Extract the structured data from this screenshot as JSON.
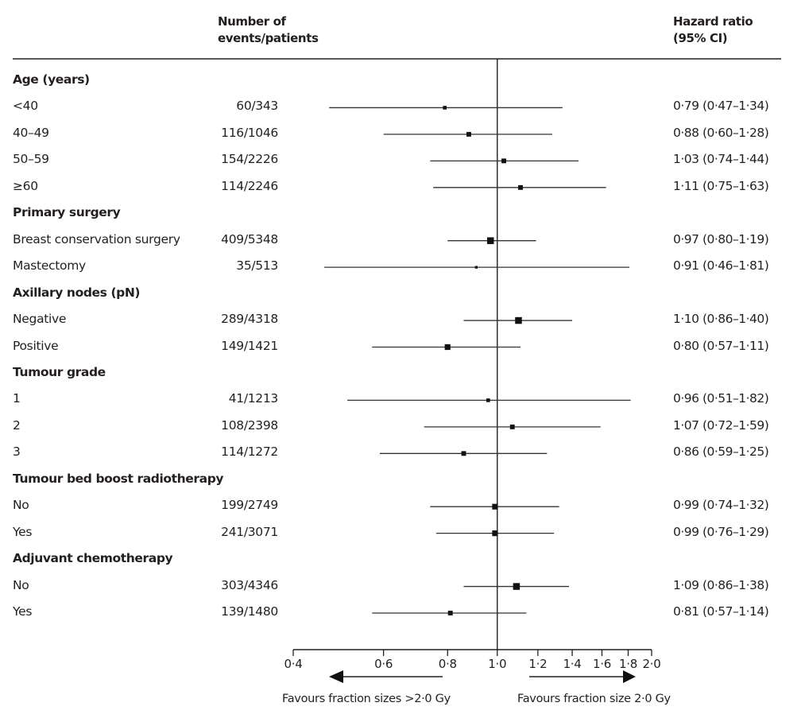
{
  "header": {
    "events_label_line1": "Number of",
    "events_label_line2": "events/patients",
    "hr_label_line1": "Hazard ratio",
    "hr_label_line2": "(95% CI)"
  },
  "chart_data": {
    "type": "forest",
    "x_scale": "log",
    "xlim": [
      0.4,
      2.0
    ],
    "reference_line": 1.0,
    "ticks": [
      {
        "value": 0.4,
        "label": "0·4"
      },
      {
        "value": 0.6,
        "label": "0·6"
      },
      {
        "value": 0.8,
        "label": "0·8"
      },
      {
        "value": 1.0,
        "label": "1·0"
      },
      {
        "value": 1.2,
        "label": "1·2"
      },
      {
        "value": 1.4,
        "label": "1·4"
      },
      {
        "value": 1.6,
        "label": "1·6"
      },
      {
        "value": 1.8,
        "label": "1·8"
      },
      {
        "value": 2.0,
        "label": "2·0"
      }
    ],
    "favours_left": "Favours fraction sizes >2·0 Gy",
    "favours_right": "Favours fraction size 2·0 Gy",
    "rows": [
      {
        "kind": "category",
        "label": "Age (years)"
      },
      {
        "kind": "item",
        "label": "<40",
        "events": "60/343",
        "hr": 0.79,
        "lo": 0.47,
        "hi": 1.34,
        "hr_text": "0·79 (0·47–1·34)",
        "box": 2
      },
      {
        "kind": "item",
        "label": "40–49",
        "events": "116/1046",
        "hr": 0.88,
        "lo": 0.6,
        "hi": 1.28,
        "hr_text": "0·88 (0·60–1·28)",
        "box": 3
      },
      {
        "kind": "item",
        "label": "50–59",
        "events": "154/2226",
        "hr": 1.03,
        "lo": 0.74,
        "hi": 1.44,
        "hr_text": "1·03 (0·74–1·44)",
        "box": 3
      },
      {
        "kind": "item",
        "label": "≥60",
        "events": "114/2246",
        "hr": 1.11,
        "lo": 0.75,
        "hi": 1.63,
        "hr_text": "1·11 (0·75–1·63)",
        "box": 3
      },
      {
        "kind": "category",
        "label": "Primary surgery"
      },
      {
        "kind": "item",
        "label": "Breast conservation surgery",
        "events": "409/5348",
        "hr": 0.97,
        "lo": 0.8,
        "hi": 1.19,
        "hr_text": "0·97 (0·80–1·19)",
        "box": 5
      },
      {
        "kind": "item",
        "label": "Mastectomy",
        "events": "35/513",
        "hr": 0.91,
        "lo": 0.46,
        "hi": 1.81,
        "hr_text": "0·91 (0·46–1·81)",
        "box": 1
      },
      {
        "kind": "category",
        "label": "Axillary nodes (pN)"
      },
      {
        "kind": "item",
        "label": "Negative",
        "events": "289/4318",
        "hr": 1.1,
        "lo": 0.86,
        "hi": 1.4,
        "hr_text": "1·10 (0·86–1·40)",
        "box": 5
      },
      {
        "kind": "item",
        "label": "Positive",
        "events": "149/1421",
        "hr": 0.8,
        "lo": 0.57,
        "hi": 1.11,
        "hr_text": "0·80 (0·57–1·11)",
        "box": 4
      },
      {
        "kind": "category",
        "label": "Tumour grade"
      },
      {
        "kind": "item",
        "label": "1",
        "events": "41/1213",
        "hr": 0.96,
        "lo": 0.51,
        "hi": 1.82,
        "hr_text": "0·96 (0·51–1·82)",
        "box": 2
      },
      {
        "kind": "item",
        "label": "2",
        "events": "108/2398",
        "hr": 1.07,
        "lo": 0.72,
        "hi": 1.59,
        "hr_text": "1·07 (0·72–1·59)",
        "box": 3
      },
      {
        "kind": "item",
        "label": "3",
        "events": "114/1272",
        "hr": 0.86,
        "lo": 0.59,
        "hi": 1.25,
        "hr_text": "0·86 (0·59–1·25)",
        "box": 3
      },
      {
        "kind": "category",
        "label": "Tumour bed boost radiotherapy"
      },
      {
        "kind": "item",
        "label": "No",
        "events": "199/2749",
        "hr": 0.99,
        "lo": 0.74,
        "hi": 1.32,
        "hr_text": "0·99 (0·74–1·32)",
        "box": 4
      },
      {
        "kind": "item",
        "label": "Yes",
        "events": "241/3071",
        "hr": 0.99,
        "lo": 0.76,
        "hi": 1.29,
        "hr_text": "0·99 (0·76–1·29)",
        "box": 4
      },
      {
        "kind": "category",
        "label": "Adjuvant chemotherapy"
      },
      {
        "kind": "item",
        "label": "No",
        "events": "303/4346",
        "hr": 1.09,
        "lo": 0.86,
        "hi": 1.38,
        "hr_text": "1·09 (0·86–1·38)",
        "box": 5
      },
      {
        "kind": "item",
        "label": "Yes",
        "events": "139/1480",
        "hr": 0.81,
        "lo": 0.57,
        "hi": 1.14,
        "hr_text": "0·81 (0·57–1·14)",
        "box": 3
      }
    ]
  }
}
